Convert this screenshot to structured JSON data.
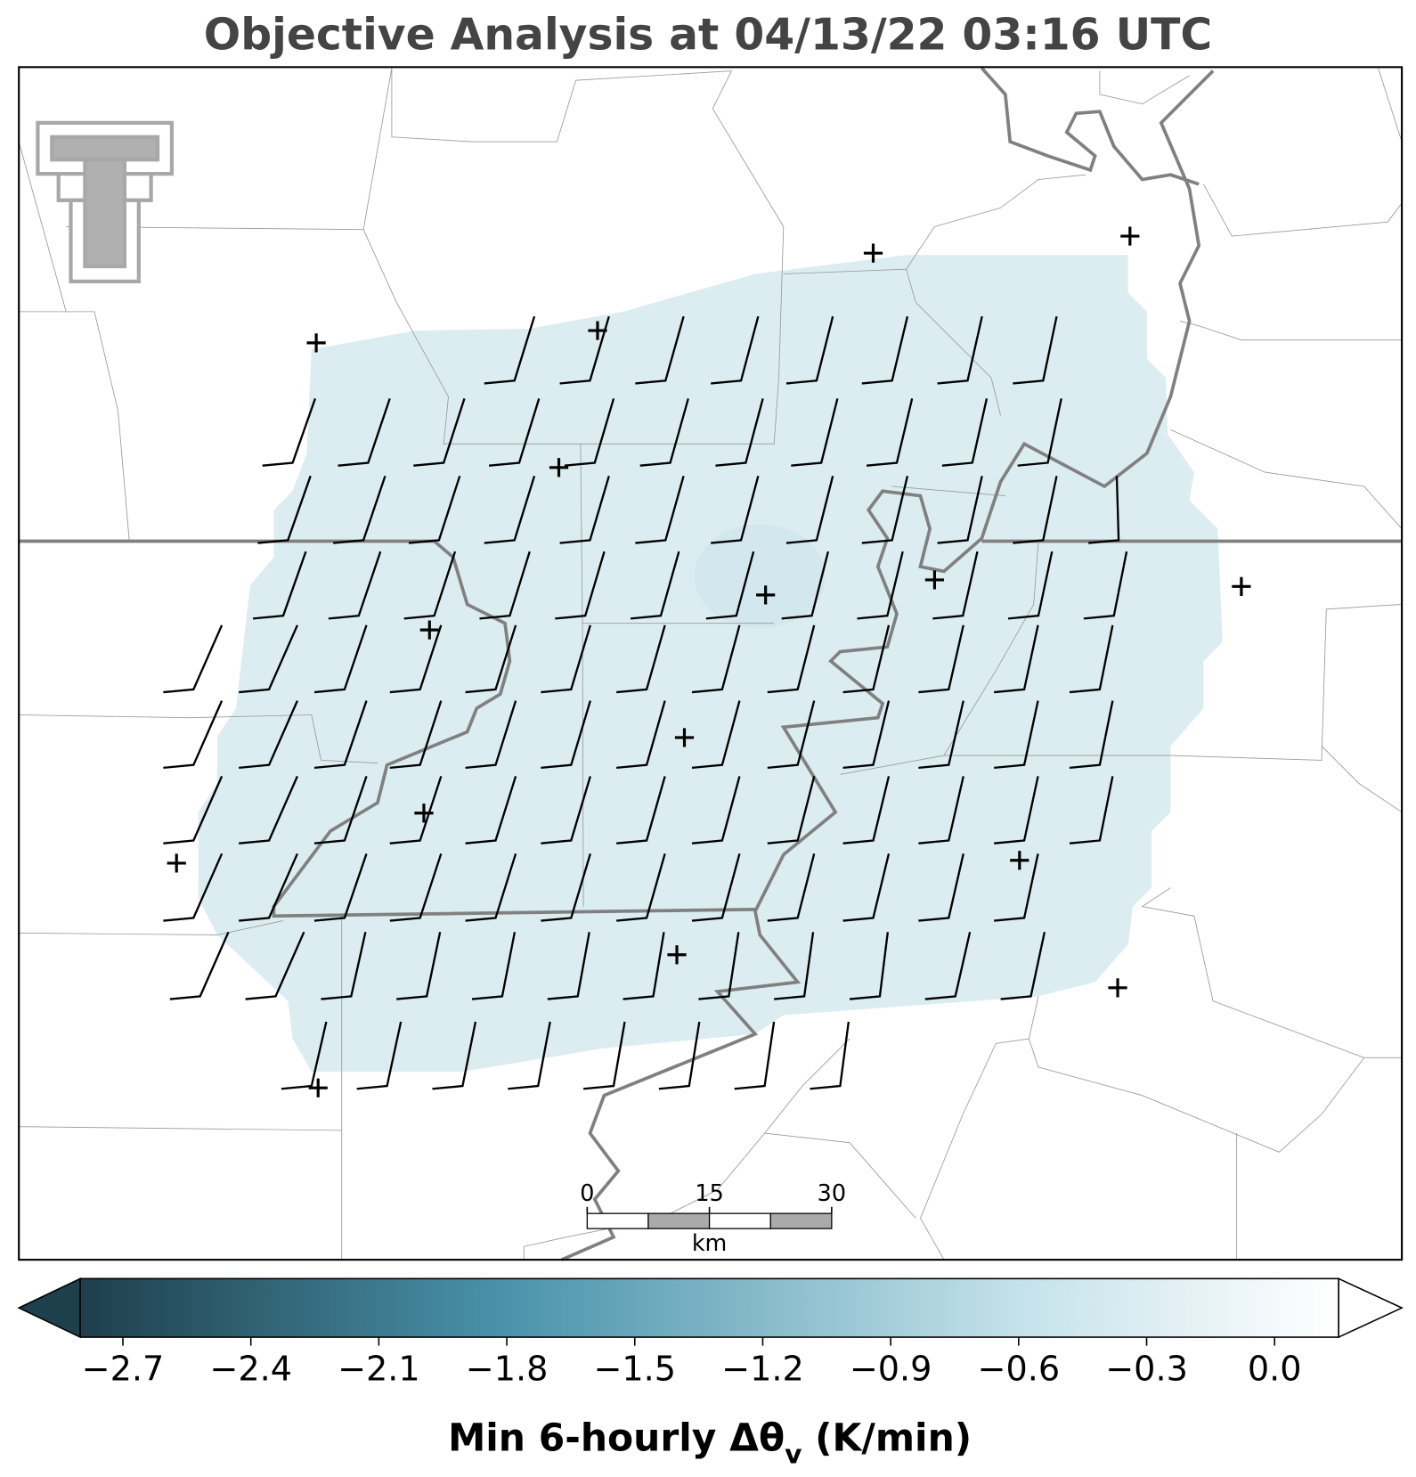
{
  "title": "Objective Analysis at 04/13/22 03:16 UTC",
  "colorbar": {
    "clim": [
      -2.8,
      0.15
    ],
    "ticks": [
      {
        "value": -2.7,
        "label": "−2.7"
      },
      {
        "value": -2.4,
        "label": "−2.4"
      },
      {
        "value": -2.1,
        "label": "−2.1"
      },
      {
        "value": -1.8,
        "label": "−1.8"
      },
      {
        "value": -1.5,
        "label": "−1.5"
      },
      {
        "value": -1.2,
        "label": "−1.2"
      },
      {
        "value": -0.9,
        "label": "−0.9"
      },
      {
        "value": -0.6,
        "label": "−0.6"
      },
      {
        "value": -0.3,
        "label": "−0.3"
      },
      {
        "value": 0.0,
        "label": "0.0"
      }
    ],
    "colormap": [
      {
        "value": -2.8,
        "color": "#1e3f4c"
      },
      {
        "value": -1.8,
        "color": "#4a93ab"
      },
      {
        "value": -0.6,
        "color": "#c4e2ea"
      },
      {
        "value": 0.0,
        "color": "#f4f9fb"
      },
      {
        "value": 0.15,
        "color": "#ffffff"
      }
    ],
    "label": {
      "main": "Min 6-hourly Δθ",
      "sub": "v",
      "unit": " (K/min)"
    }
  },
  "scale_bar": {
    "lim": [
      0,
      30
    ],
    "ticks": [
      0,
      15,
      30
    ],
    "unit": "km"
  }
}
